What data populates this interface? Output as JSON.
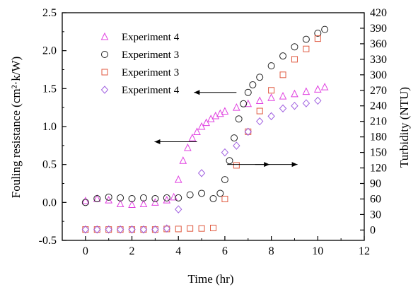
{
  "chart_data": {
    "type": "scatter",
    "title": "",
    "xlabel": "Time (hr)",
    "ylabel_left": "Fouling resistance (cm²·k/W)",
    "ylabel_right": "Turbidity (NTU)",
    "xlim": [
      -1,
      12
    ],
    "ylim_left": [
      -0.5,
      2.5
    ],
    "ylim_right": [
      -20,
      420
    ],
    "xticks": [
      "0",
      "2",
      "4",
      "6",
      "8",
      "10",
      "12"
    ],
    "yticks_left": [
      "-0.5",
      "0.0",
      "0.5",
      "1.0",
      "1.5",
      "2.0",
      "2.5"
    ],
    "yticks_right": [
      "0",
      "30",
      "60",
      "90",
      "120",
      "150",
      "180",
      "210",
      "240",
      "270",
      "300",
      "330",
      "360",
      "390",
      "420"
    ],
    "grid": false,
    "legend_position": "top-left",
    "series": [
      {
        "name": "Experiment 4",
        "marker": "triangle",
        "color": "#e040e0",
        "axis": "left",
        "x": [
          0.0,
          0.5,
          1.0,
          1.5,
          2.0,
          2.5,
          3.0,
          3.5,
          3.8,
          4.0,
          4.2,
          4.4,
          4.6,
          4.8,
          5.0,
          5.2,
          5.4,
          5.6,
          5.8,
          6.0,
          6.5,
          7.0,
          7.5,
          8.0,
          8.5,
          9.0,
          9.5,
          10.0,
          10.3
        ],
        "y": [
          0.02,
          0.05,
          0.03,
          -0.02,
          -0.03,
          -0.02,
          0.0,
          0.03,
          0.07,
          0.3,
          0.55,
          0.72,
          0.85,
          0.93,
          1.0,
          1.05,
          1.1,
          1.14,
          1.17,
          1.2,
          1.25,
          1.3,
          1.34,
          1.38,
          1.4,
          1.43,
          1.46,
          1.49,
          1.52
        ]
      },
      {
        "name": "Experiment 3",
        "marker": "circle",
        "color": "#222222",
        "axis": "left",
        "x": [
          0.0,
          0.5,
          1.0,
          1.5,
          2.0,
          2.5,
          3.0,
          3.5,
          4.0,
          4.5,
          5.0,
          5.5,
          5.8,
          6.0,
          6.2,
          6.4,
          6.6,
          6.8,
          7.0,
          7.2,
          7.5,
          8.0,
          8.5,
          9.0,
          9.5,
          10.0,
          10.3
        ],
        "y": [
          0.0,
          0.05,
          0.07,
          0.06,
          0.05,
          0.06,
          0.05,
          0.06,
          0.06,
          0.1,
          0.12,
          0.05,
          0.12,
          0.3,
          0.55,
          0.85,
          1.1,
          1.3,
          1.45,
          1.55,
          1.65,
          1.8,
          1.93,
          2.05,
          2.15,
          2.23,
          2.28
        ]
      },
      {
        "name": "Experiment 3",
        "marker": "square",
        "color": "#e05a40",
        "axis": "right",
        "x": [
          0.0,
          0.5,
          1.0,
          1.5,
          2.0,
          2.5,
          3.0,
          3.5,
          4.0,
          4.5,
          5.0,
          5.5,
          6.0,
          6.5,
          7.0,
          7.5,
          8.0,
          8.5,
          9.0,
          9.5,
          10.0
        ],
        "y": [
          1,
          1,
          1,
          1,
          1,
          1,
          1,
          2,
          2,
          3,
          3,
          4,
          60,
          125,
          190,
          230,
          270,
          300,
          330,
          350,
          370
        ]
      },
      {
        "name": "Experiment 4",
        "marker": "diamond",
        "color": "#a060e0",
        "axis": "right",
        "x": [
          0.0,
          0.5,
          1.0,
          1.5,
          2.0,
          2.5,
          3.0,
          3.5,
          4.0,
          5.0,
          6.0,
          6.5,
          7.0,
          7.5,
          8.0,
          8.5,
          9.0,
          9.5,
          10.0
        ],
        "y": [
          1,
          1,
          1,
          1,
          1,
          1,
          1,
          3,
          40,
          110,
          150,
          163,
          190,
          210,
          220,
          235,
          240,
          245,
          250
        ]
      }
    ],
    "annotations": [
      {
        "type": "arrow",
        "direction": "left",
        "x": 6.5,
        "y": 1.45,
        "axis": "left"
      },
      {
        "type": "arrow",
        "direction": "left",
        "x": 4.8,
        "y": 0.8,
        "axis": "left"
      },
      {
        "type": "arrow",
        "direction": "right",
        "x": 6.1,
        "y": 0.5,
        "axis": "left"
      },
      {
        "type": "arrow",
        "direction": "right",
        "x": 7.3,
        "y": 0.5,
        "axis": "left"
      }
    ]
  }
}
